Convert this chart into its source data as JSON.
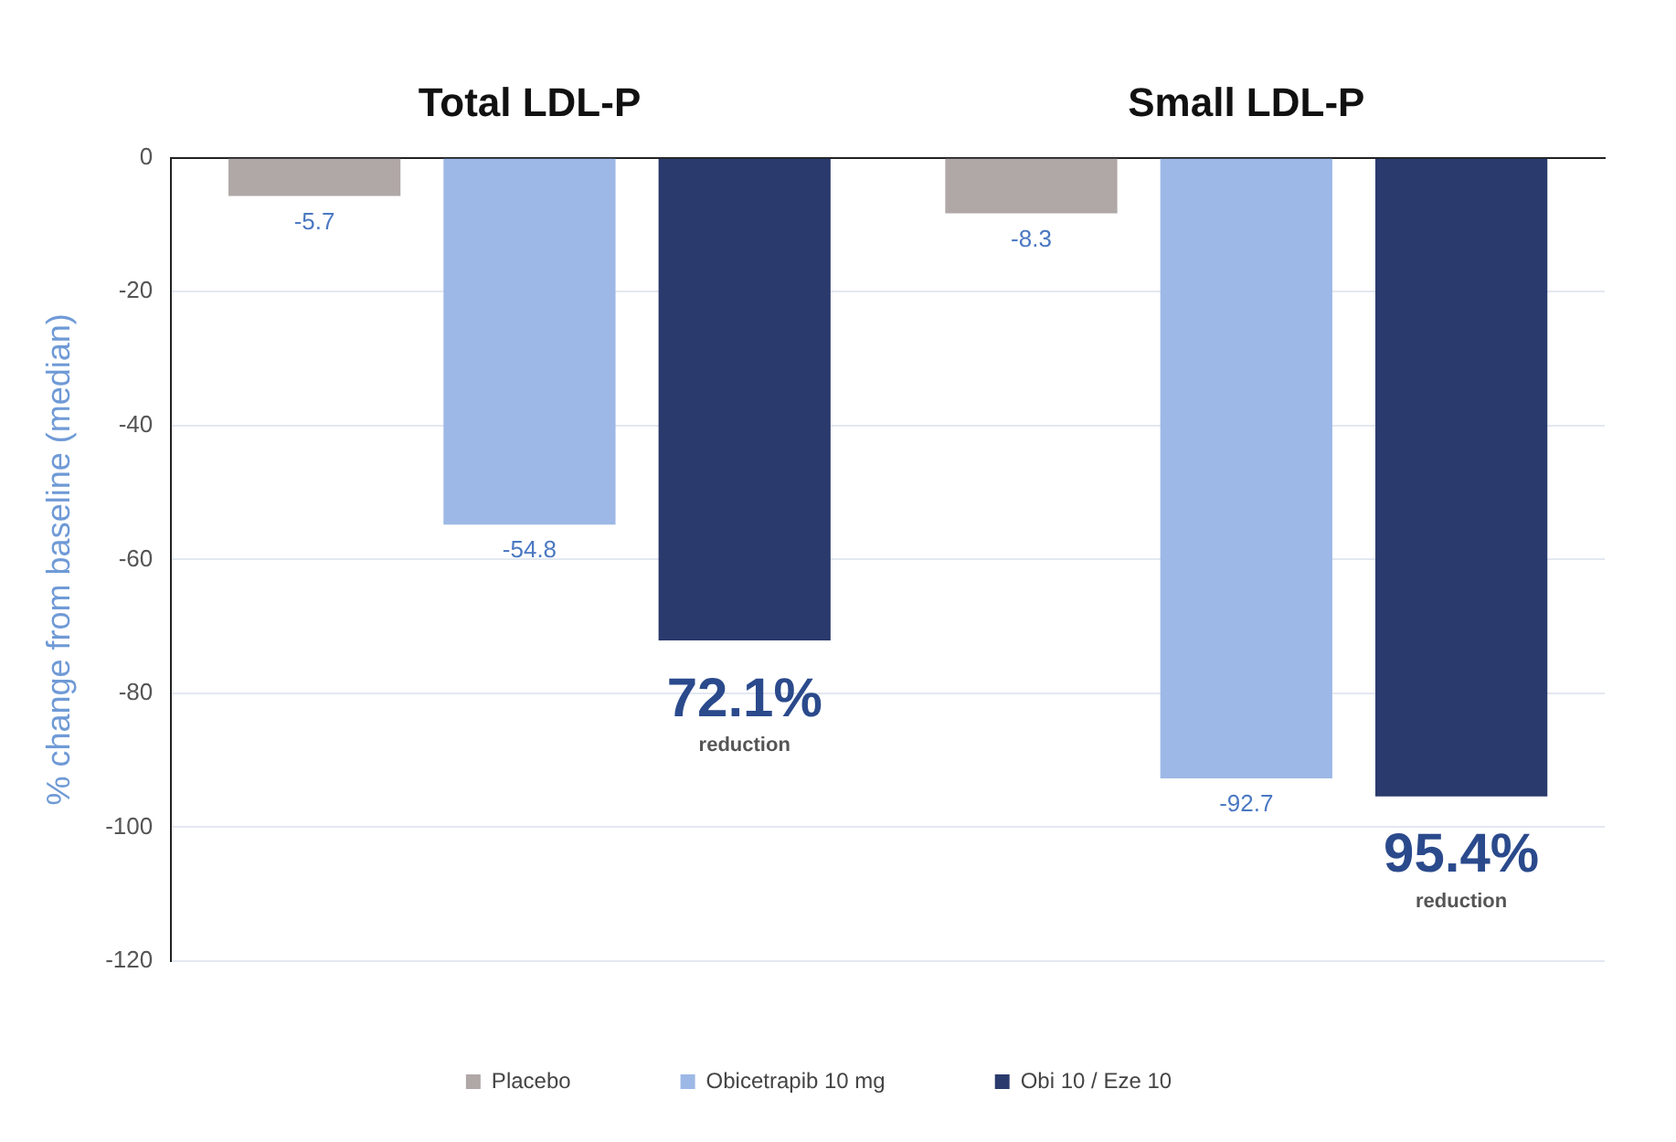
{
  "chart_data": {
    "type": "bar",
    "ylabel": "% change from baseline (median)",
    "categories": [
      "Total LDL-P",
      "Small LDL-P"
    ],
    "series": [
      {
        "name": "Placebo",
        "color": "#b0a7a7",
        "values": [
          -5.7,
          -8.3
        ],
        "value_labels": [
          "-5.7",
          "-8.3"
        ]
      },
      {
        "name": "Obicetrapib 10 mg",
        "color": "#9db8e6",
        "values": [
          -54.8,
          -92.7
        ],
        "value_labels": [
          "-54.8",
          "-92.7"
        ]
      },
      {
        "name": "Obi 10 / Eze 10",
        "color": "#2a3a6c",
        "values": [
          -72.1,
          -95.4
        ]
      }
    ],
    "annotations": [
      "72.1%",
      "reduction",
      "95.4%",
      "reduction"
    ],
    "ylim": [
      -120,
      0
    ],
    "yticks": [
      -120,
      -100,
      -80,
      -60,
      -40,
      -20,
      0
    ],
    "grid": "y",
    "legend": "bottom"
  }
}
